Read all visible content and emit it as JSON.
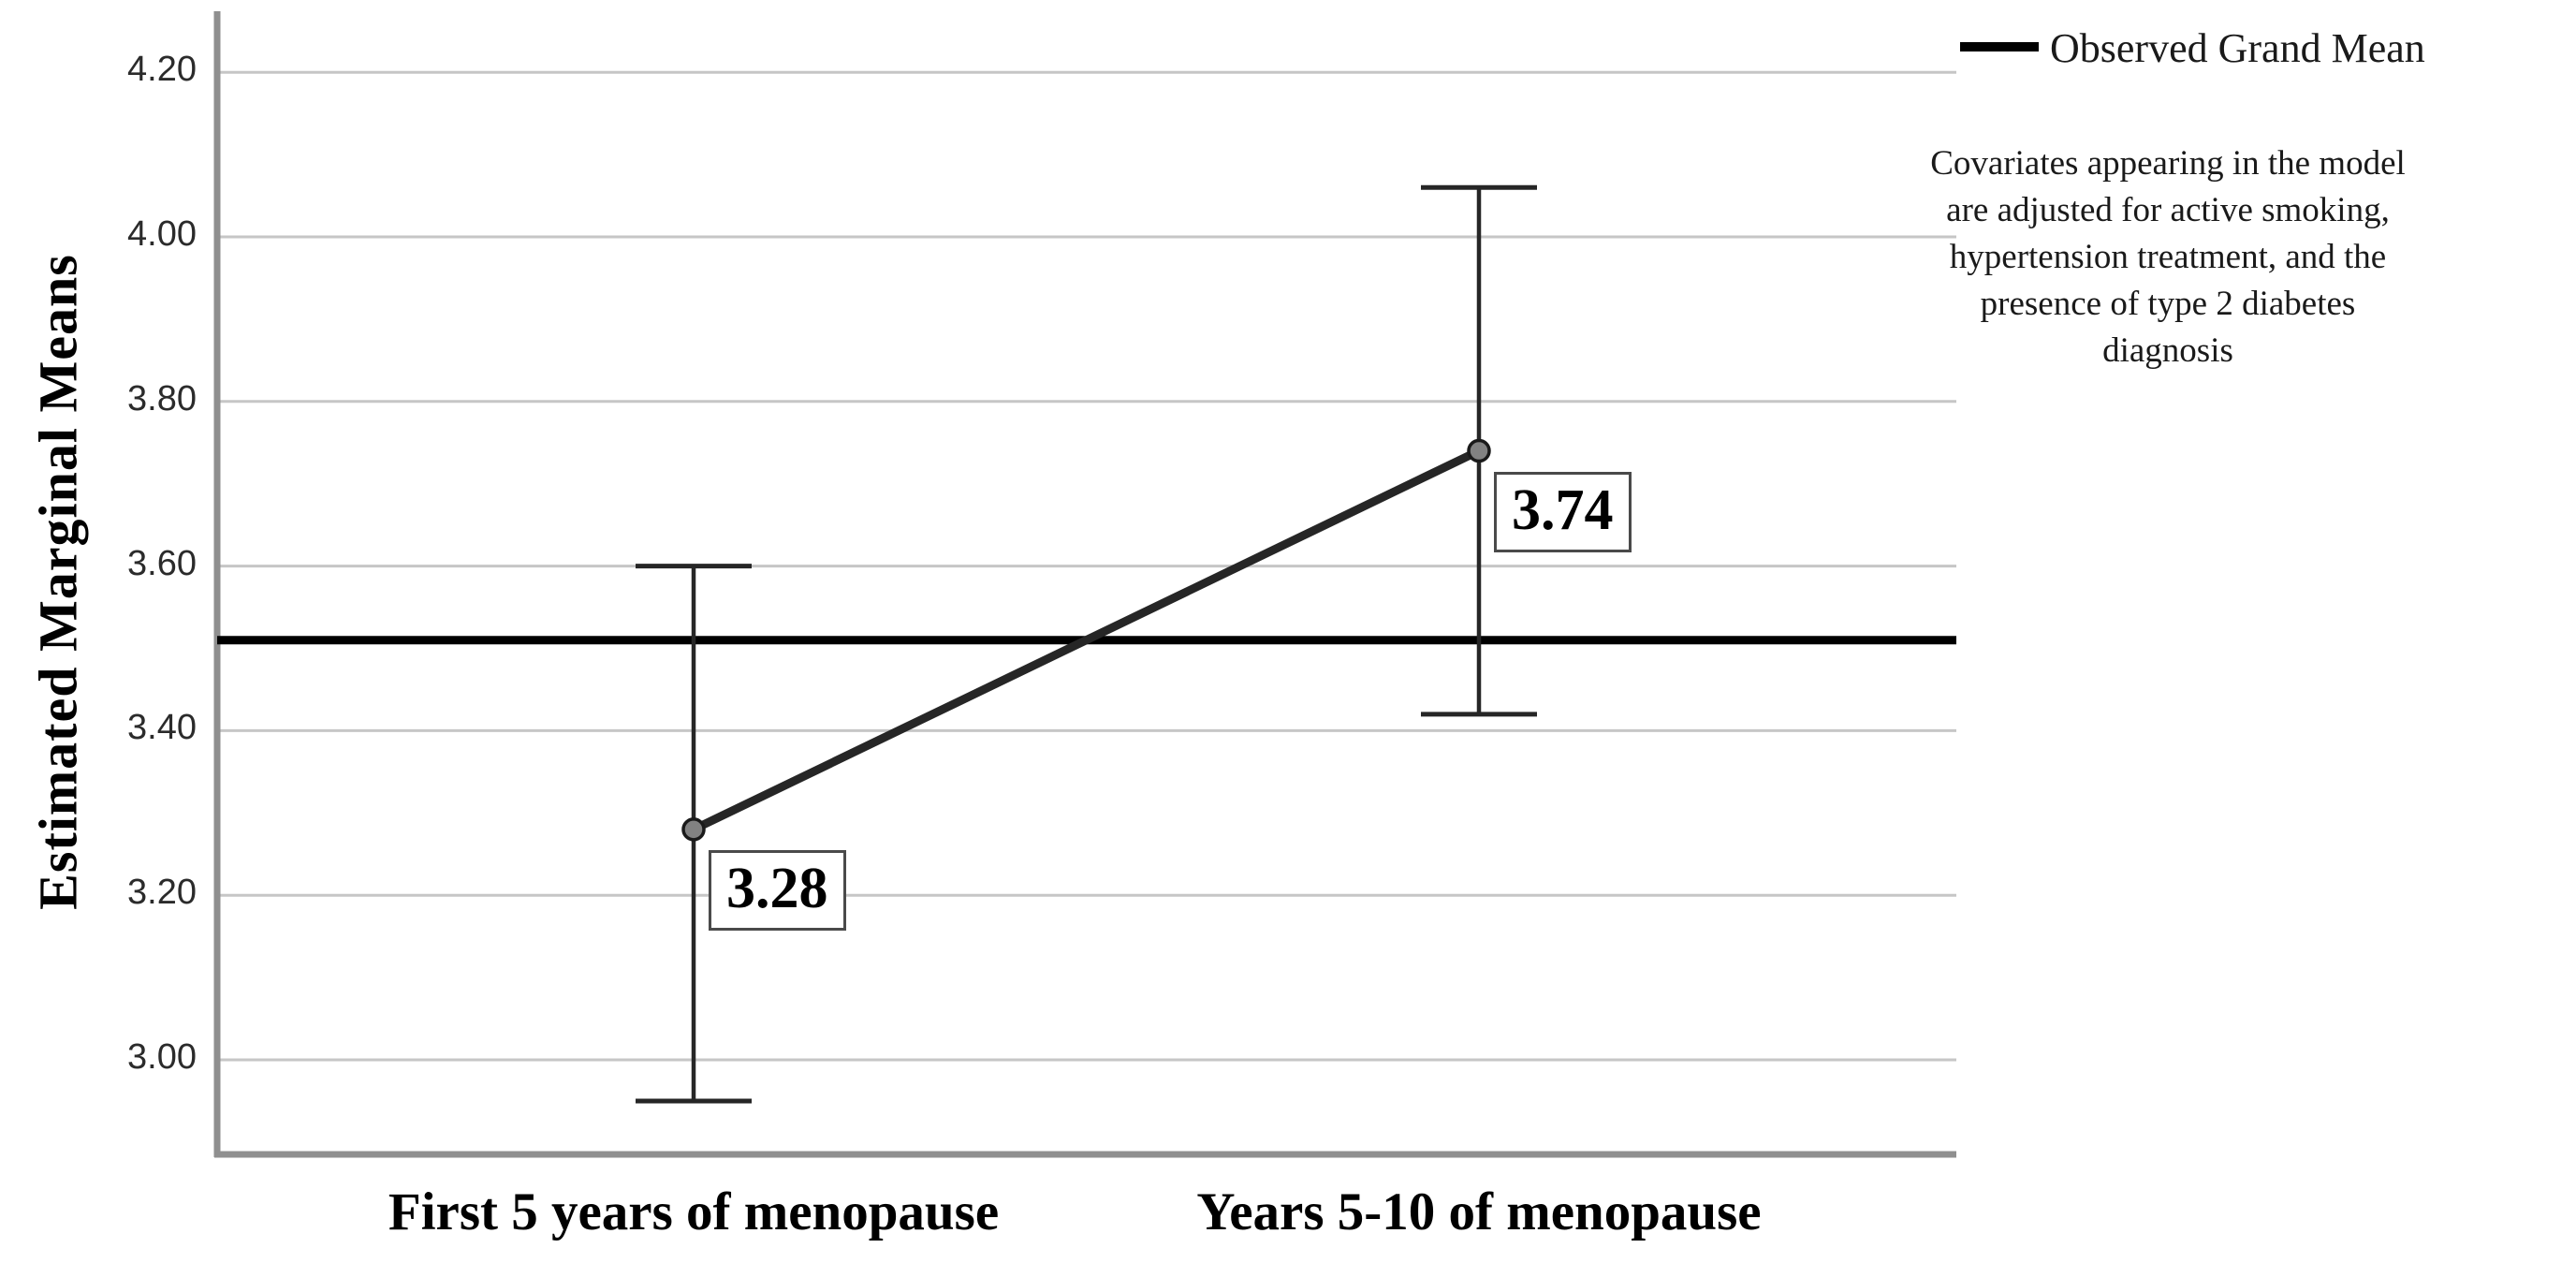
{
  "chart_data": {
    "type": "line",
    "title": "",
    "xlabel": "",
    "ylabel": "Estimated Marginal Means",
    "categories": [
      "First 5 years of menopause",
      "Years 5-10 of menopause"
    ],
    "series": [
      {
        "name": "Estimated Marginal Means",
        "values": [
          3.28,
          3.74
        ],
        "value_labels": [
          "3.28",
          "3.74"
        ],
        "error_low": [
          2.95,
          3.42
        ],
        "error_high": [
          3.6,
          4.06
        ]
      }
    ],
    "grand_mean": 3.51,
    "ytick_labels": [
      "3.00",
      "3.20",
      "3.40",
      "3.60",
      "3.80",
      "4.00",
      "4.20"
    ],
    "ytick_values": [
      3.0,
      3.2,
      3.4,
      3.6,
      3.8,
      4.0,
      4.2
    ],
    "ylim": [
      2.88,
      4.27
    ],
    "grid": true,
    "legend_position": "top-right"
  },
  "legend": {
    "label": "Observed Grand Mean"
  },
  "note": {
    "text": "Covariates appearing in the model are adjusted for active smoking, hypertension treatment, and the presence of type 2 diabetes diagnosis"
  },
  "colors": {
    "series": "#262626",
    "grand_mean": "#000000",
    "gridline": "#c6c6c6",
    "axis": "#8f8f8f",
    "marker_fill": "#828282",
    "marker_stroke": "#1a1a1a",
    "text": "#1a1a1a"
  }
}
